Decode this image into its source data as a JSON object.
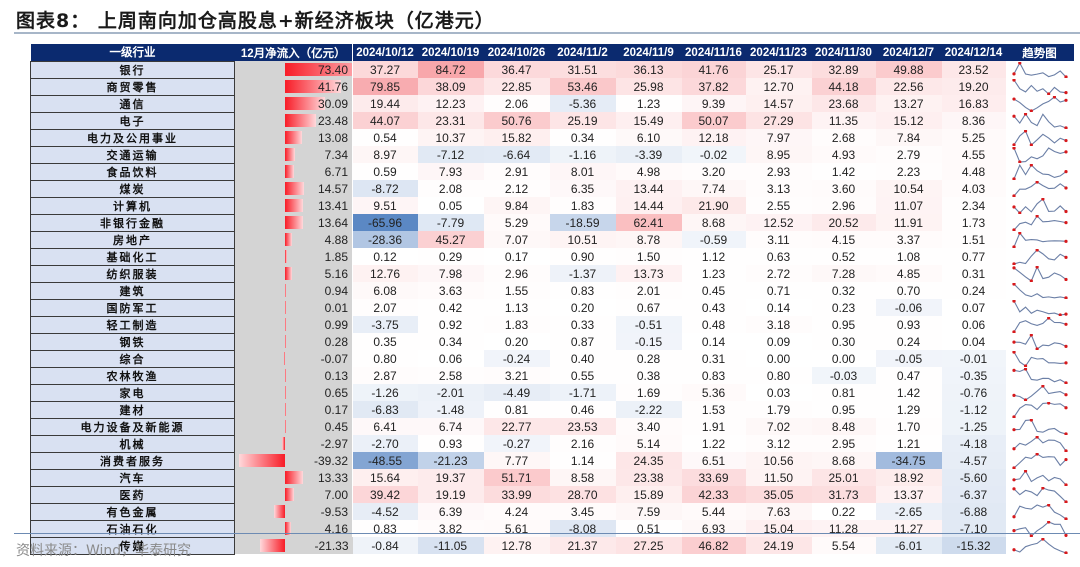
{
  "title": "图表8： 上周南向加仓高股息+新经济板块（亿港元）",
  "source": "资料来源：Wind，华泰研究",
  "colors": {
    "header_bg": "#0b2a6f",
    "industry_bg": "#d9e1f2",
    "dec_bg": "#d4d4d4",
    "positive": "#f2646a",
    "negative": "#4f7fc0",
    "sparkline": "#6b7fa6",
    "sparkline_marker": "#d7191c"
  },
  "headers": {
    "industry": "一级行业",
    "dec_inflow": "12月净流入（亿元）",
    "weeks": [
      "2024/10/12",
      "2024/10/19",
      "2024/10/26",
      "2024/11/2",
      "2024/11/9",
      "2024/11/16",
      "2024/11/23",
      "2024/11/30",
      "2024/12/7",
      "2024/12/14"
    ],
    "trend": "趋势图"
  },
  "rows": [
    {
      "industry": "银行",
      "dec": "73.40",
      "weeks": [
        "37.27",
        "84.72",
        "36.47",
        "31.51",
        "36.13",
        "41.76",
        "25.17",
        "32.89",
        "49.88",
        "23.52"
      ]
    },
    {
      "industry": "商贸零售",
      "dec": "41.76",
      "weeks": [
        "79.85",
        "38.09",
        "22.85",
        "53.46",
        "25.98",
        "37.82",
        "12.70",
        "44.18",
        "22.56",
        "19.20"
      ]
    },
    {
      "industry": "通信",
      "dec": "30.09",
      "weeks": [
        "19.44",
        "12.23",
        "2.06",
        "-5.36",
        "1.23",
        "9.39",
        "14.57",
        "23.68",
        "13.27",
        "16.83"
      ]
    },
    {
      "industry": "电子",
      "dec": "23.48",
      "weeks": [
        "44.07",
        "23.31",
        "50.76",
        "25.19",
        "15.49",
        "50.07",
        "27.29",
        "11.35",
        "15.12",
        "8.36"
      ]
    },
    {
      "industry": "电力及公用事业",
      "dec": "13.08",
      "weeks": [
        "0.54",
        "10.37",
        "15.82",
        "0.34",
        "6.10",
        "12.18",
        "7.97",
        "2.68",
        "7.84",
        "5.25"
      ]
    },
    {
      "industry": "交通运输",
      "dec": "7.34",
      "weeks": [
        "8.97",
        "-7.12",
        "-6.64",
        "-1.16",
        "-3.39",
        "-0.02",
        "8.95",
        "4.93",
        "2.79",
        "4.55"
      ]
    },
    {
      "industry": "食品饮料",
      "dec": "6.71",
      "weeks": [
        "0.59",
        "7.93",
        "2.91",
        "8.01",
        "4.98",
        "3.20",
        "2.93",
        "1.42",
        "2.23",
        "4.48"
      ]
    },
    {
      "industry": "煤炭",
      "dec": "14.57",
      "weeks": [
        "-8.72",
        "2.08",
        "2.12",
        "6.35",
        "13.44",
        "7.74",
        "3.13",
        "3.60",
        "10.54",
        "4.03"
      ]
    },
    {
      "industry": "计算机",
      "dec": "13.41",
      "weeks": [
        "9.51",
        "0.05",
        "9.84",
        "1.83",
        "14.44",
        "21.90",
        "2.55",
        "2.96",
        "11.07",
        "2.34"
      ]
    },
    {
      "industry": "非银行金融",
      "dec": "13.64",
      "weeks": [
        "-65.96",
        "-7.79",
        "5.29",
        "-18.59",
        "62.41",
        "8.68",
        "12.52",
        "20.52",
        "11.91",
        "1.73"
      ]
    },
    {
      "industry": "房地产",
      "dec": "4.88",
      "weeks": [
        "-28.36",
        "45.27",
        "7.07",
        "10.51",
        "8.78",
        "-0.59",
        "3.11",
        "4.15",
        "3.37",
        "1.51"
      ]
    },
    {
      "industry": "基础化工",
      "dec": "1.85",
      "weeks": [
        "0.12",
        "0.29",
        "0.17",
        "0.90",
        "1.50",
        "1.12",
        "0.63",
        "0.52",
        "1.08",
        "0.77"
      ]
    },
    {
      "industry": "纺织服装",
      "dec": "5.16",
      "weeks": [
        "12.76",
        "7.98",
        "2.96",
        "-1.37",
        "13.73",
        "1.23",
        "2.72",
        "7.28",
        "4.85",
        "0.31"
      ]
    },
    {
      "industry": "建筑",
      "dec": "0.94",
      "weeks": [
        "6.08",
        "3.63",
        "1.55",
        "0.83",
        "2.01",
        "0.45",
        "0.71",
        "0.32",
        "0.70",
        "0.24"
      ]
    },
    {
      "industry": "国防军工",
      "dec": "0.01",
      "weeks": [
        "2.07",
        "0.42",
        "1.13",
        "0.20",
        "0.67",
        "0.43",
        "0.14",
        "0.23",
        "-0.06",
        "0.07"
      ]
    },
    {
      "industry": "轻工制造",
      "dec": "0.99",
      "weeks": [
        "-3.75",
        "0.92",
        "1.83",
        "0.33",
        "-0.51",
        "0.48",
        "3.18",
        "0.95",
        "0.93",
        "0.06"
      ]
    },
    {
      "industry": "钢铁",
      "dec": "0.28",
      "weeks": [
        "0.35",
        "0.34",
        "0.20",
        "0.87",
        "-0.15",
        "0.14",
        "0.09",
        "0.30",
        "0.24",
        "0.04"
      ]
    },
    {
      "industry": "综合",
      "dec": "-0.07",
      "weeks": [
        "0.80",
        "0.06",
        "-0.24",
        "0.40",
        "0.28",
        "0.31",
        "0.00",
        "0.00",
        "-0.05",
        "-0.01"
      ]
    },
    {
      "industry": "农林牧渔",
      "dec": "0.13",
      "weeks": [
        "2.87",
        "2.58",
        "3.21",
        "0.55",
        "0.38",
        "0.83",
        "0.80",
        "-0.03",
        "0.47",
        "-0.35"
      ]
    },
    {
      "industry": "家电",
      "dec": "0.65",
      "weeks": [
        "-1.26",
        "-2.01",
        "-4.49",
        "-1.71",
        "1.69",
        "5.36",
        "0.03",
        "0.81",
        "1.42",
        "-0.76"
      ]
    },
    {
      "industry": "建材",
      "dec": "0.17",
      "weeks": [
        "-6.83",
        "-1.48",
        "0.81",
        "0.46",
        "-2.22",
        "1.53",
        "1.79",
        "0.95",
        "1.29",
        "-1.12"
      ]
    },
    {
      "industry": "电力设备及新能源",
      "dec": "0.45",
      "weeks": [
        "6.41",
        "6.74",
        "22.77",
        "23.53",
        "3.40",
        "1.91",
        "7.02",
        "8.48",
        "1.70",
        "-1.25"
      ]
    },
    {
      "industry": "机械",
      "dec": "-2.97",
      "weeks": [
        "-2.70",
        "0.93",
        "-0.27",
        "2.16",
        "5.14",
        "1.22",
        "3.12",
        "2.95",
        "1.21",
        "-4.18"
      ]
    },
    {
      "industry": "消费者服务",
      "dec": "-39.32",
      "weeks": [
        "-48.55",
        "-21.23",
        "7.77",
        "1.14",
        "24.35",
        "6.51",
        "10.56",
        "8.68",
        "-34.75",
        "-4.57"
      ]
    },
    {
      "industry": "汽车",
      "dec": "13.33",
      "weeks": [
        "15.64",
        "19.37",
        "51.71",
        "8.58",
        "23.38",
        "33.69",
        "11.50",
        "25.01",
        "18.92",
        "-5.60"
      ]
    },
    {
      "industry": "医药",
      "dec": "7.00",
      "weeks": [
        "39.42",
        "19.19",
        "33.99",
        "28.70",
        "15.89",
        "42.33",
        "35.05",
        "31.73",
        "13.37",
        "-6.37"
      ]
    },
    {
      "industry": "有色金属",
      "dec": "-9.53",
      "weeks": [
        "-4.52",
        "6.39",
        "4.24",
        "3.45",
        "7.59",
        "5.44",
        "7.63",
        "0.22",
        "-2.65",
        "-6.88"
      ]
    },
    {
      "industry": "石油石化",
      "dec": "4.16",
      "weeks": [
        "0.83",
        "3.82",
        "5.61",
        "-8.08",
        "0.51",
        "6.93",
        "15.04",
        "11.28",
        "11.27",
        "-7.10"
      ]
    },
    {
      "industry": "传媒",
      "dec": "-21.33",
      "weeks": [
        "-0.84",
        "-11.05",
        "12.78",
        "21.37",
        "27.25",
        "46.82",
        "24.19",
        "5.54",
        "-6.01",
        "-15.32"
      ]
    }
  ],
  "chart_data": {
    "type": "table",
    "title": "图表8： 上周南向加仓高股息+新经济板块（亿港元）",
    "columns": [
      "一级行业",
      "12月净流入（亿元）",
      "2024/10/12",
      "2024/10/19",
      "2024/10/26",
      "2024/11/2",
      "2024/11/9",
      "2024/11/16",
      "2024/11/23",
      "2024/11/30",
      "2024/12/7",
      "2024/12/14",
      "趋势图"
    ],
    "note": "Weekly southbound net inflow heatmap (red positive, blue negative) with December inflow data bars and sparkline trends; values in rows[]",
    "source": "资料来源：Wind，华泰研究"
  }
}
